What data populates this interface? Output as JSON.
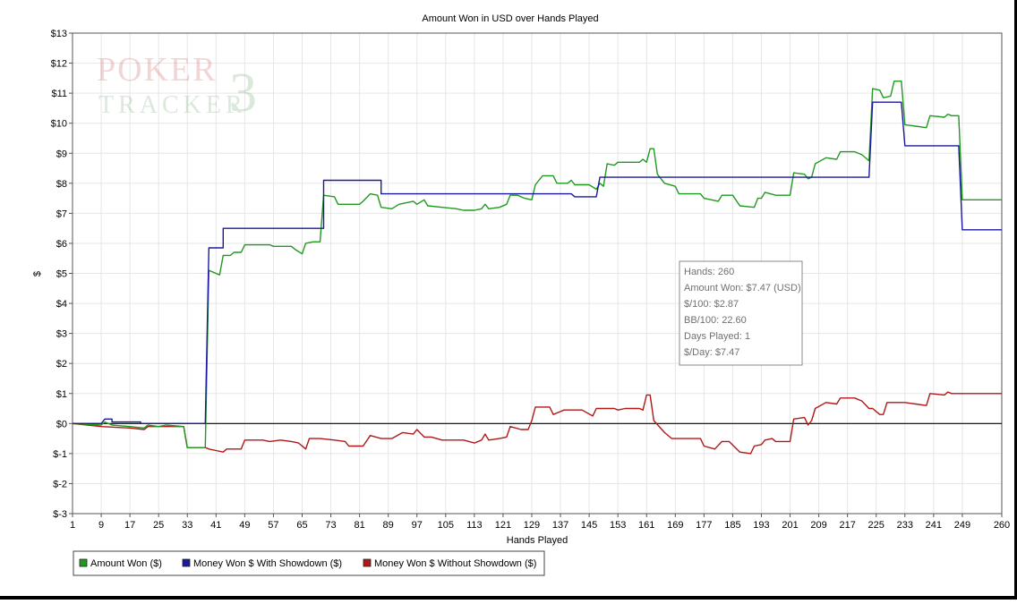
{
  "watermark": {
    "line1": "POKER",
    "digit": "3",
    "line2": "TRACKER"
  },
  "tooltip": [
    "Hands: 260",
    "Amount Won: $7.47 (USD)",
    "$/100: $2.87",
    "BB/100: 22.60",
    "Days Played: 1",
    "$/Day: $7.47"
  ],
  "chart_data": {
    "type": "line",
    "title": "Amount Won in USD over Hands Played",
    "xlabel": "Hands Played",
    "ylabel": "$",
    "xlim": [
      1,
      260
    ],
    "ylim": [
      -3,
      13
    ],
    "x_ticks": [
      1,
      9,
      17,
      25,
      33,
      41,
      49,
      57,
      65,
      73,
      81,
      89,
      97,
      105,
      113,
      121,
      129,
      137,
      145,
      153,
      161,
      169,
      177,
      185,
      193,
      201,
      209,
      217,
      225,
      233,
      241,
      249,
      260
    ],
    "y_ticks": [
      {
        "value": 13,
        "label": "$13"
      },
      {
        "value": 12,
        "label": "$12"
      },
      {
        "value": 11,
        "label": "$11"
      },
      {
        "value": 10,
        "label": "$10"
      },
      {
        "value": 9,
        "label": "$9"
      },
      {
        "value": 8,
        "label": "$8"
      },
      {
        "value": 7,
        "label": "$7"
      },
      {
        "value": 6,
        "label": "$6"
      },
      {
        "value": 5,
        "label": "$5"
      },
      {
        "value": 4,
        "label": "$4"
      },
      {
        "value": 3,
        "label": "$3"
      },
      {
        "value": 2,
        "label": "$2"
      },
      {
        "value": 1,
        "label": "$1"
      },
      {
        "value": 0,
        "label": "$0"
      },
      {
        "value": -1,
        "label": "$-1"
      },
      {
        "value": -2,
        "label": "$-2"
      },
      {
        "value": -3,
        "label": "$-3"
      }
    ],
    "grid": true,
    "legend_position": "bottom-left",
    "series": [
      {
        "name": "Amount Won ($)",
        "color": "#1f9a1f",
        "points": [
          [
            1,
            0
          ],
          [
            9,
            -0.05
          ],
          [
            10,
            0.05
          ],
          [
            12,
            -0.05
          ],
          [
            17,
            -0.1
          ],
          [
            21,
            -0.15
          ],
          [
            22,
            -0.05
          ],
          [
            25,
            -0.1
          ],
          [
            27,
            -0.05
          ],
          [
            32,
            -0.1
          ],
          [
            33,
            -0.8
          ],
          [
            38,
            -0.8
          ],
          [
            39,
            5.1
          ],
          [
            41,
            5.0
          ],
          [
            42,
            4.95
          ],
          [
            43,
            5.6
          ],
          [
            45,
            5.6
          ],
          [
            46,
            5.7
          ],
          [
            48,
            5.7
          ],
          [
            49,
            5.95
          ],
          [
            56,
            5.95
          ],
          [
            57,
            5.9
          ],
          [
            62,
            5.9
          ],
          [
            63,
            5.8
          ],
          [
            65,
            5.65
          ],
          [
            66,
            6.0
          ],
          [
            68,
            6.05
          ],
          [
            70,
            6.05
          ],
          [
            71,
            7.6
          ],
          [
            74,
            7.55
          ],
          [
            75,
            7.3
          ],
          [
            81,
            7.3
          ],
          [
            82,
            7.4
          ],
          [
            84,
            7.65
          ],
          [
            86,
            7.6
          ],
          [
            87,
            7.2
          ],
          [
            90,
            7.15
          ],
          [
            92,
            7.3
          ],
          [
            96,
            7.4
          ],
          [
            97,
            7.3
          ],
          [
            99,
            7.45
          ],
          [
            100,
            7.25
          ],
          [
            104,
            7.2
          ],
          [
            108,
            7.15
          ],
          [
            110,
            7.1
          ],
          [
            113,
            7.1
          ],
          [
            115,
            7.15
          ],
          [
            116,
            7.3
          ],
          [
            117,
            7.15
          ],
          [
            120,
            7.2
          ],
          [
            122,
            7.3
          ],
          [
            123,
            7.6
          ],
          [
            125,
            7.6
          ],
          [
            127,
            7.5
          ],
          [
            129,
            7.45
          ],
          [
            130,
            7.95
          ],
          [
            132,
            8.25
          ],
          [
            135,
            8.25
          ],
          [
            136,
            8.0
          ],
          [
            139,
            8.0
          ],
          [
            140,
            8.1
          ],
          [
            141,
            7.95
          ],
          [
            145,
            7.95
          ],
          [
            147,
            7.8
          ],
          [
            148,
            8.0
          ],
          [
            149,
            7.9
          ],
          [
            150,
            8.65
          ],
          [
            152,
            8.6
          ],
          [
            153,
            8.7
          ],
          [
            159,
            8.7
          ],
          [
            160,
            8.8
          ],
          [
            161,
            8.7
          ],
          [
            162,
            9.15
          ],
          [
            163,
            9.15
          ],
          [
            164,
            8.3
          ],
          [
            166,
            8.0
          ],
          [
            169,
            7.9
          ],
          [
            170,
            7.65
          ],
          [
            176,
            7.65
          ],
          [
            177,
            7.5
          ],
          [
            181,
            7.4
          ],
          [
            182,
            7.6
          ],
          [
            185,
            7.6
          ],
          [
            187,
            7.25
          ],
          [
            191,
            7.2
          ],
          [
            192,
            7.5
          ],
          [
            193,
            7.5
          ],
          [
            194,
            7.7
          ],
          [
            197,
            7.6
          ],
          [
            201,
            7.6
          ],
          [
            202,
            8.35
          ],
          [
            205,
            8.3
          ],
          [
            206,
            8.15
          ],
          [
            207,
            8.2
          ],
          [
            208,
            8.65
          ],
          [
            211,
            8.85
          ],
          [
            214,
            8.8
          ],
          [
            215,
            9.05
          ],
          [
            219,
            9.05
          ],
          [
            221,
            8.95
          ],
          [
            223,
            8.75
          ],
          [
            224,
            11.15
          ],
          [
            226,
            11.1
          ],
          [
            227,
            10.85
          ],
          [
            229,
            10.9
          ],
          [
            230,
            11.4
          ],
          [
            232,
            11.4
          ],
          [
            233,
            9.95
          ],
          [
            236,
            9.9
          ],
          [
            239,
            9.85
          ],
          [
            240,
            10.25
          ],
          [
            244,
            10.2
          ],
          [
            245,
            10.3
          ],
          [
            246,
            10.25
          ],
          [
            248,
            10.25
          ],
          [
            249,
            7.45
          ],
          [
            260,
            7.45
          ]
        ]
      },
      {
        "name": "Money Won $ With Showdown ($)",
        "color": "#1a1a9e",
        "points": [
          [
            1,
            0
          ],
          [
            9,
            0
          ],
          [
            10,
            0.15
          ],
          [
            12,
            0.15
          ],
          [
            12,
            0.05
          ],
          [
            20,
            0.05
          ],
          [
            20,
            0
          ],
          [
            33,
            0
          ],
          [
            38,
            0
          ],
          [
            39,
            5.85
          ],
          [
            43,
            5.85
          ],
          [
            43,
            6.5
          ],
          [
            71,
            6.5
          ],
          [
            71,
            8.1
          ],
          [
            87,
            8.1
          ],
          [
            87,
            7.65
          ],
          [
            140,
            7.65
          ],
          [
            141,
            7.55
          ],
          [
            147,
            7.55
          ],
          [
            148,
            8.2
          ],
          [
            223,
            8.2
          ],
          [
            224,
            10.7
          ],
          [
            232,
            10.7
          ],
          [
            233,
            9.25
          ],
          [
            248,
            9.25
          ],
          [
            249,
            6.45
          ],
          [
            260,
            6.45
          ]
        ]
      },
      {
        "name": "Money Won $ Without Showdown ($)",
        "color": "#b01818",
        "points": [
          [
            1,
            0
          ],
          [
            9,
            -0.1
          ],
          [
            17,
            -0.15
          ],
          [
            21,
            -0.2
          ],
          [
            22,
            -0.1
          ],
          [
            25,
            -0.1
          ],
          [
            27,
            -0.1
          ],
          [
            32,
            -0.1
          ],
          [
            33,
            -0.8
          ],
          [
            38,
            -0.8
          ],
          [
            39,
            -0.85
          ],
          [
            41,
            -0.9
          ],
          [
            43,
            -0.95
          ],
          [
            44,
            -0.85
          ],
          [
            48,
            -0.85
          ],
          [
            49,
            -0.55
          ],
          [
            54,
            -0.55
          ],
          [
            56,
            -0.6
          ],
          [
            59,
            -0.55
          ],
          [
            62,
            -0.6
          ],
          [
            64,
            -0.65
          ],
          [
            66,
            -0.85
          ],
          [
            67,
            -0.5
          ],
          [
            70,
            -0.5
          ],
          [
            74,
            -0.55
          ],
          [
            77,
            -0.6
          ],
          [
            78,
            -0.75
          ],
          [
            82,
            -0.75
          ],
          [
            84,
            -0.4
          ],
          [
            87,
            -0.5
          ],
          [
            90,
            -0.5
          ],
          [
            93,
            -0.3
          ],
          [
            96,
            -0.35
          ],
          [
            97,
            -0.2
          ],
          [
            99,
            -0.45
          ],
          [
            101,
            -0.45
          ],
          [
            104,
            -0.55
          ],
          [
            110,
            -0.55
          ],
          [
            113,
            -0.65
          ],
          [
            115,
            -0.55
          ],
          [
            116,
            -0.35
          ],
          [
            117,
            -0.55
          ],
          [
            120,
            -0.5
          ],
          [
            122,
            -0.45
          ],
          [
            123,
            -0.1
          ],
          [
            126,
            -0.2
          ],
          [
            128,
            -0.2
          ],
          [
            129,
            0.1
          ],
          [
            130,
            0.55
          ],
          [
            134,
            0.55
          ],
          [
            135,
            0.3
          ],
          [
            137,
            0.4
          ],
          [
            138,
            0.45
          ],
          [
            143,
            0.45
          ],
          [
            146,
            0.25
          ],
          [
            147,
            0.5
          ],
          [
            152,
            0.5
          ],
          [
            153,
            0.45
          ],
          [
            155,
            0.5
          ],
          [
            159,
            0.5
          ],
          [
            160,
            0.45
          ],
          [
            161,
            0.95
          ],
          [
            162,
            0.95
          ],
          [
            163,
            0.1
          ],
          [
            166,
            -0.3
          ],
          [
            168,
            -0.5
          ],
          [
            176,
            -0.5
          ],
          [
            177,
            -0.75
          ],
          [
            180,
            -0.85
          ],
          [
            182,
            -0.6
          ],
          [
            184,
            -0.6
          ],
          [
            187,
            -0.95
          ],
          [
            190,
            -1.0
          ],
          [
            191,
            -0.75
          ],
          [
            193,
            -0.7
          ],
          [
            194,
            -0.55
          ],
          [
            196,
            -0.5
          ],
          [
            197,
            -0.6
          ],
          [
            201,
            -0.6
          ],
          [
            202,
            0.15
          ],
          [
            205,
            0.2
          ],
          [
            206,
            -0.05
          ],
          [
            207,
            0.1
          ],
          [
            208,
            0.5
          ],
          [
            211,
            0.7
          ],
          [
            214,
            0.65
          ],
          [
            215,
            0.85
          ],
          [
            219,
            0.85
          ],
          [
            221,
            0.75
          ],
          [
            223,
            0.5
          ],
          [
            224,
            0.5
          ],
          [
            226,
            0.3
          ],
          [
            227,
            0.3
          ],
          [
            228,
            0.7
          ],
          [
            233,
            0.7
          ],
          [
            236,
            0.65
          ],
          [
            239,
            0.6
          ],
          [
            240,
            1.0
          ],
          [
            244,
            0.95
          ],
          [
            245,
            1.05
          ],
          [
            246,
            1.0
          ],
          [
            260,
            1.0
          ]
        ]
      }
    ]
  }
}
